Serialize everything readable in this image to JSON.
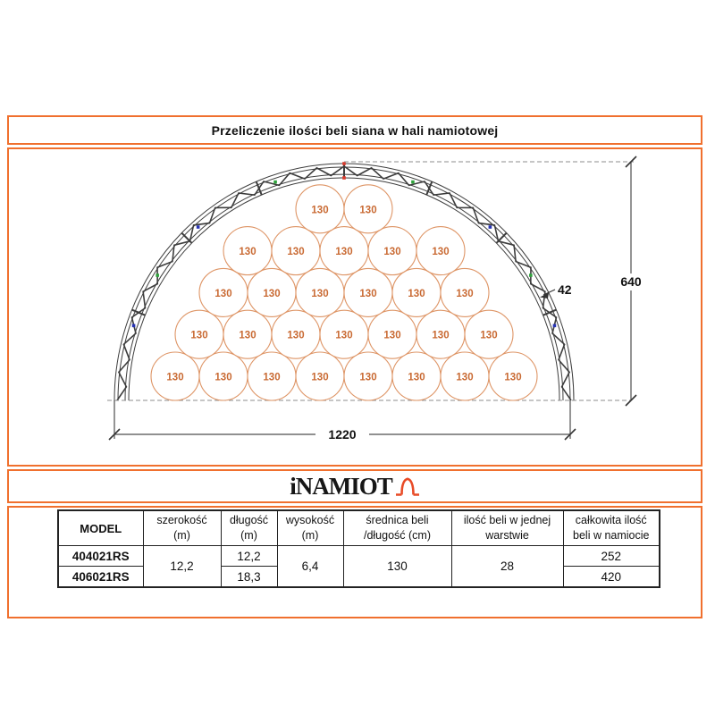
{
  "title": "Przeliczenie ilości beli siana w hali namiotowej",
  "logo": {
    "name": "iNAMIOT"
  },
  "diagram": {
    "bale_label": "130",
    "rows_bottom_to_top": [
      8,
      7,
      6,
      5,
      2
    ],
    "bales_per_layer_total": 28,
    "dim_width_label": "1220",
    "dim_height_label": "640",
    "truss_depth_label": "42",
    "colors": {
      "accent": "#f0702e",
      "bale_stroke": "#de9566",
      "bale_text": "#c96a33",
      "truss": "#3d3d3d",
      "marker_red": "#dd3a2c",
      "marker_green": "#2fa33c",
      "marker_blue": "#2733b5",
      "dim_line": "#4d4d4d",
      "logo_icon": "#e84b27"
    }
  },
  "table": {
    "headers": [
      {
        "line1": "MODEL",
        "line2": ""
      },
      {
        "line1": "szerokość",
        "line2": "(m)"
      },
      {
        "line1": "długość",
        "line2": "(m)"
      },
      {
        "line1": "wysokość",
        "line2": "(m)"
      },
      {
        "line1": "średnica beli",
        "line2": "/długość (cm)"
      },
      {
        "line1": "ilość beli w jednej",
        "line2": "warstwie"
      },
      {
        "line1": "całkowita ilość",
        "line2": "beli w namiocie"
      }
    ],
    "models": [
      "404021RS",
      "406021RS"
    ],
    "szerokosc": "12,2",
    "dlugosc": [
      "12,2",
      "18,3"
    ],
    "wysokosc": "6,4",
    "srednica": "130",
    "ilosc_warstwa": "28",
    "calkowita": [
      "252",
      "420"
    ]
  }
}
